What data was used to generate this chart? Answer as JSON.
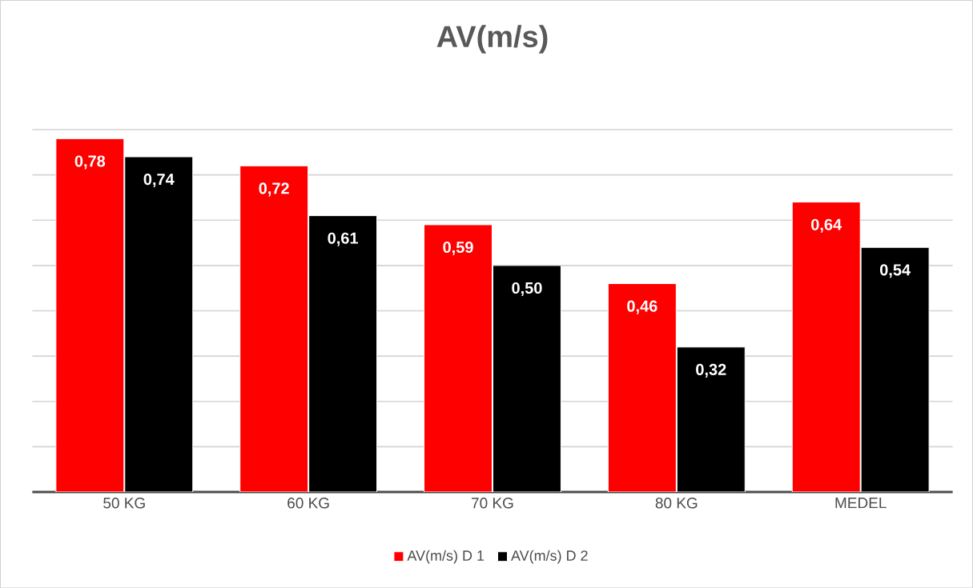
{
  "chart_data": {
    "type": "bar",
    "title": "AV(m/s)",
    "categories": [
      "50 KG",
      "60 KG",
      "70 KG",
      "80 KG",
      "MEDEL"
    ],
    "series": [
      {
        "name": "AV(m/s) D 1",
        "color": "#ff0000",
        "values": [
          0.78,
          0.72,
          0.59,
          0.46,
          0.64
        ],
        "value_labels": [
          "0,78",
          "0,72",
          "0,59",
          "0,46",
          "0,64"
        ]
      },
      {
        "name": "AV(m/s) D 2",
        "color": "#000000",
        "values": [
          0.74,
          0.61,
          0.5,
          0.32,
          0.54
        ],
        "value_labels": [
          "0,74",
          "0,61",
          "0,50",
          "0,32",
          "0,54"
        ]
      }
    ],
    "grid": "y",
    "legend": "bottom",
    "tick_labels": "x"
  }
}
